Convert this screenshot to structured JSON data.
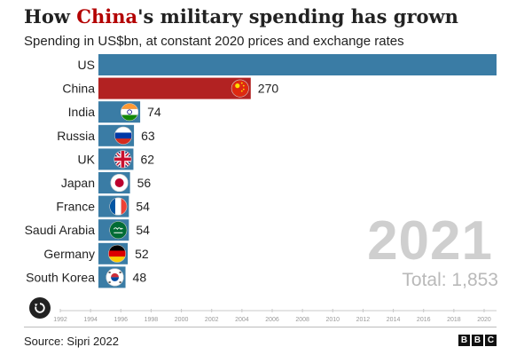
{
  "header": {
    "title_pre": "How ",
    "title_highlight": "China",
    "title_post": "'s military spending has grown",
    "subtitle": "Spending in US$bn, at constant 2020 prices and exchange rates"
  },
  "colors": {
    "us_bar": "#3a7ca5",
    "china_bar": "#b22222",
    "axis_text": "#999999",
    "year_text": "#cfcfcf"
  },
  "chart_data": {
    "type": "bar",
    "orientation": "horizontal",
    "categories": [
      "US",
      "China",
      "India",
      "Russia",
      "UK",
      "Japan",
      "France",
      "Saudi Arabia",
      "Germany",
      "South Korea"
    ],
    "values": [
      768,
      270,
      74,
      63,
      62,
      56,
      54,
      54,
      52,
      48
    ],
    "flags": [
      "us-flag-icon",
      "china-flag-icon",
      "india-flag-icon",
      "russia-flag-icon",
      "uk-flag-icon",
      "japan-flag-icon",
      "france-flag-icon",
      "saudi-arabia-flag-icon",
      "germany-flag-icon",
      "south-korea-flag-icon"
    ],
    "xlim": [
      0,
      800
    ],
    "timeline": {
      "ticks": [
        "1992",
        "1994",
        "1996",
        "1998",
        "2000",
        "2002",
        "2004",
        "2006",
        "2008",
        "2010",
        "2012",
        "2014",
        "2016",
        "2018",
        "2020"
      ],
      "current_year": "2021"
    }
  },
  "overlay": {
    "year": "2021",
    "total": "Total: 1,853"
  },
  "footer": {
    "source": "Source: Sipri 2022",
    "brand_letters": [
      "B",
      "B",
      "C"
    ]
  },
  "controls": {
    "replay_icon": "replay-icon"
  }
}
